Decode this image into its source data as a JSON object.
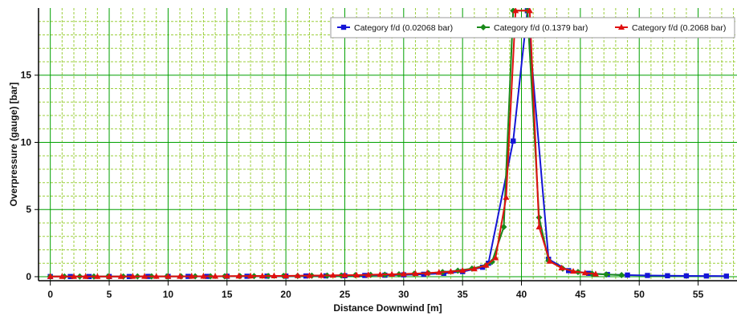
{
  "chart_data": {
    "type": "line",
    "title": "",
    "xlabel": "Distance Downwind [m]",
    "ylabel": "Overpressure (gauge) [bar]",
    "xlim": [
      -1,
      58.3
    ],
    "ylim": [
      -0.3,
      20
    ],
    "x_ticks": [
      0,
      5,
      10,
      15,
      20,
      25,
      30,
      35,
      40,
      45,
      50,
      55
    ],
    "y_ticks": [
      0,
      5,
      10,
      15
    ],
    "grid": true,
    "legend_position": "top-right",
    "colors": {
      "major_grid": "#00a000",
      "minor_grid": "#9ccf3c",
      "axis": "#000000"
    },
    "series": [
      {
        "name": "Category f/d (0.02068 bar)",
        "color": "#1515d6",
        "marker": "square",
        "x": [
          0,
          1.7,
          3.3,
          5.0,
          6.7,
          8.3,
          10.0,
          11.7,
          13.3,
          15.0,
          16.7,
          18.4,
          20.0,
          21.7,
          23.4,
          25.0,
          26.7,
          28.4,
          30.0,
          31.7,
          33.4,
          35.0,
          36.7,
          37.2,
          39.3,
          40.5,
          42.3,
          44.0,
          45.7,
          47.3,
          49.0,
          50.7,
          52.4,
          54.0,
          55.7,
          57.4
        ],
        "y": [
          0.01,
          0.01,
          0.01,
          0.01,
          0.01,
          0.02,
          0.02,
          0.02,
          0.02,
          0.03,
          0.03,
          0.04,
          0.04,
          0.05,
          0.06,
          0.07,
          0.09,
          0.11,
          0.14,
          0.18,
          0.25,
          0.38,
          0.7,
          1.0,
          10.1,
          19.8,
          1.3,
          0.45,
          0.25,
          0.16,
          0.12,
          0.09,
          0.07,
          0.06,
          0.05,
          0.04
        ]
      },
      {
        "name": "Category f/d (0.1379 bar)",
        "color": "#1a8a1a",
        "marker": "diamond",
        "x": [
          0,
          1.2,
          2.5,
          3.7,
          4.9,
          6.2,
          7.4,
          8.6,
          9.9,
          11.1,
          12.3,
          13.6,
          14.8,
          16.1,
          17.3,
          18.5,
          19.8,
          21.0,
          22.2,
          23.5,
          24.7,
          25.9,
          27.2,
          28.4,
          29.6,
          30.9,
          32.1,
          33.3,
          34.6,
          35.8,
          37.0,
          37.5,
          38.5,
          39.3,
          40.5,
          41.5,
          42.3,
          43.5,
          44.8,
          46.0,
          47.2,
          48.5
        ],
        "y": [
          0.01,
          0.01,
          0.01,
          0.01,
          0.01,
          0.01,
          0.02,
          0.02,
          0.02,
          0.02,
          0.03,
          0.03,
          0.03,
          0.04,
          0.04,
          0.05,
          0.06,
          0.06,
          0.07,
          0.08,
          0.09,
          0.11,
          0.13,
          0.15,
          0.18,
          0.22,
          0.27,
          0.34,
          0.45,
          0.6,
          0.85,
          1.1,
          3.7,
          19.8,
          19.8,
          4.4,
          1.2,
          0.6,
          0.35,
          0.22,
          0.16,
          0.12
        ]
      },
      {
        "name": "Category f/d (0.2068 bar)",
        "color": "#e01010",
        "marker": "triangle",
        "x": [
          0,
          1.0,
          2.0,
          3.0,
          4.0,
          5.0,
          6.0,
          7.0,
          8.0,
          9.0,
          10.0,
          11.0,
          12.0,
          13.0,
          14.0,
          15.0,
          16.0,
          17.0,
          18.0,
          19.0,
          20.0,
          21.0,
          22.0,
          23.0,
          24.0,
          25.0,
          26.0,
          27.0,
          28.0,
          29.0,
          30.0,
          31.0,
          32.0,
          33.0,
          34.0,
          35.0,
          36.0,
          37.0,
          37.8,
          38.7,
          39.5,
          40.7,
          41.5,
          42.4,
          43.4,
          44.4,
          45.4,
          46.3
        ],
        "y": [
          0.01,
          0.01,
          0.01,
          0.01,
          0.01,
          0.01,
          0.01,
          0.02,
          0.02,
          0.02,
          0.02,
          0.02,
          0.03,
          0.03,
          0.03,
          0.04,
          0.04,
          0.05,
          0.05,
          0.06,
          0.06,
          0.07,
          0.08,
          0.09,
          0.1,
          0.11,
          0.12,
          0.14,
          0.16,
          0.18,
          0.2,
          0.23,
          0.27,
          0.32,
          0.38,
          0.46,
          0.58,
          0.85,
          1.4,
          5.9,
          19.8,
          19.8,
          3.7,
          1.15,
          0.65,
          0.4,
          0.28,
          0.2
        ]
      }
    ]
  }
}
